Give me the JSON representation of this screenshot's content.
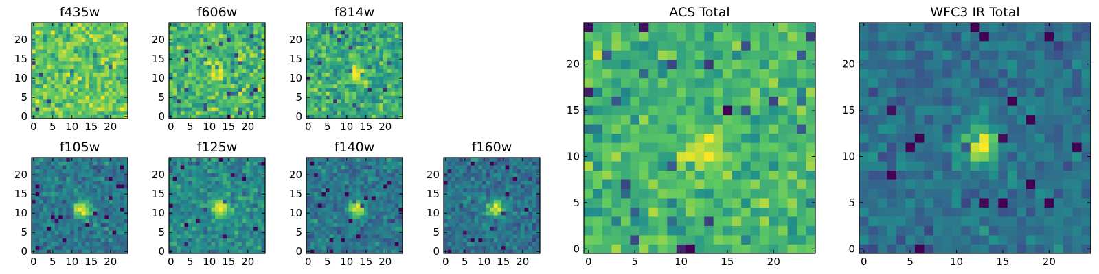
{
  "figure": {
    "colormap_stops": [
      "#440154",
      "#3b528b",
      "#21918c",
      "#5ec962",
      "#fde725"
    ],
    "panel_titles": [
      "f435w",
      "f606w",
      "f814w",
      "f105w",
      "f125w",
      "f140w",
      "f160w",
      "ACS Total",
      "WFC3 IR Total"
    ]
  },
  "chart_data": [
    {
      "type": "heatmap",
      "title": "f435w",
      "grid": [
        25,
        25
      ],
      "xticks": [
        "0",
        "5",
        "10",
        "15",
        "20"
      ],
      "yticks": [
        "0",
        "5",
        "10",
        "15",
        "20"
      ],
      "xlim": [
        -0.5,
        24.5
      ],
      "ylim": [
        -0.5,
        24.5
      ],
      "source": {
        "x": 12.8,
        "y": 10.7,
        "peak": 0.0,
        "sigma": 1.7
      },
      "background": 0.74,
      "noise": 0.17,
      "seed": 11
    },
    {
      "type": "heatmap",
      "title": "f606w",
      "grid": [
        25,
        25
      ],
      "xticks": [
        "0",
        "5",
        "10",
        "15",
        "20"
      ],
      "yticks": [
        "0",
        "5",
        "10",
        "15",
        "20"
      ],
      "xlim": [
        -0.5,
        24.5
      ],
      "ylim": [
        -0.5,
        24.5
      ],
      "source": {
        "x": 12.3,
        "y": 11.4,
        "peak": 0.35,
        "sigma": 1.6
      },
      "background": 0.66,
      "noise": 0.18,
      "seed": 23
    },
    {
      "type": "heatmap",
      "title": "f814w",
      "grid": [
        25,
        25
      ],
      "xticks": [
        "0",
        "5",
        "10",
        "15",
        "20"
      ],
      "yticks": [
        "0",
        "5",
        "10",
        "15",
        "20"
      ],
      "xlim": [
        -0.5,
        24.5
      ],
      "ylim": [
        -0.5,
        24.5
      ],
      "source": {
        "x": 13.0,
        "y": 11.2,
        "peak": 0.42,
        "sigma": 1.4
      },
      "background": 0.62,
      "noise": 0.17,
      "seed": 37
    },
    {
      "type": "heatmap",
      "title": "f105w",
      "grid": [
        25,
        25
      ],
      "xticks": [
        "0",
        "5",
        "10",
        "15",
        "20"
      ],
      "yticks": [
        "0",
        "5",
        "10",
        "15",
        "20"
      ],
      "xlim": [
        -0.5,
        24.5
      ],
      "ylim": [
        -0.5,
        24.5
      ],
      "source": {
        "x": 12.8,
        "y": 11.0,
        "peak": 0.6,
        "sigma": 1.5
      },
      "background": 0.4,
      "noise": 0.12,
      "seed": 41
    },
    {
      "type": "heatmap",
      "title": "f125w",
      "grid": [
        25,
        25
      ],
      "xticks": [
        "0",
        "5",
        "10",
        "15",
        "20"
      ],
      "yticks": [
        "0",
        "5",
        "10",
        "15",
        "20"
      ],
      "xlim": [
        -0.5,
        24.5
      ],
      "ylim": [
        -0.5,
        24.5
      ],
      "source": {
        "x": 12.8,
        "y": 11.2,
        "peak": 0.5,
        "sigma": 1.6
      },
      "background": 0.48,
      "noise": 0.13,
      "seed": 53
    },
    {
      "type": "heatmap",
      "title": "f140w",
      "grid": [
        25,
        25
      ],
      "xticks": [
        "0",
        "5",
        "10",
        "15",
        "20"
      ],
      "yticks": [
        "0",
        "5",
        "10",
        "15",
        "20"
      ],
      "xlim": [
        -0.5,
        24.5
      ],
      "ylim": [
        -0.5,
        24.5
      ],
      "source": {
        "x": 12.8,
        "y": 11.0,
        "peak": 0.6,
        "sigma": 1.5
      },
      "background": 0.4,
      "noise": 0.12,
      "seed": 67
    },
    {
      "type": "heatmap",
      "title": "f160w",
      "grid": [
        25,
        25
      ],
      "xticks": [
        "0",
        "5",
        "10",
        "15",
        "20"
      ],
      "yticks": [
        "0",
        "5",
        "10",
        "15",
        "20"
      ],
      "xlim": [
        -0.5,
        24.5
      ],
      "ylim": [
        -0.5,
        24.5
      ],
      "source": {
        "x": 13.2,
        "y": 11.4,
        "peak": 0.6,
        "sigma": 1.5
      },
      "background": 0.38,
      "noise": 0.12,
      "seed": 79
    },
    {
      "type": "heatmap",
      "title": "ACS Total",
      "grid": [
        25,
        25
      ],
      "xticks": [
        "0",
        "5",
        "10",
        "15",
        "20"
      ],
      "yticks": [
        "0",
        "5",
        "10",
        "15",
        "20"
      ],
      "xlim": [
        -0.5,
        24.5
      ],
      "ylim": [
        -0.5,
        24.5
      ],
      "source": {
        "x": 13.0,
        "y": 11.0,
        "peak": 0.4,
        "sigma": 1.5
      },
      "background": 0.66,
      "noise": 0.15,
      "seed": 83
    },
    {
      "type": "heatmap",
      "title": "WFC3 IR Total",
      "grid": [
        25,
        25
      ],
      "xticks": [
        "0",
        "5",
        "10",
        "15",
        "20"
      ],
      "yticks": [
        "0",
        "5",
        "10",
        "15",
        "20"
      ],
      "xlim": [
        -0.5,
        24.5
      ],
      "ylim": [
        -0.5,
        24.5
      ],
      "source": {
        "x": 12.6,
        "y": 11.2,
        "peak": 0.65,
        "sigma": 1.35
      },
      "background": 0.37,
      "noise": 0.1,
      "seed": 97
    }
  ]
}
